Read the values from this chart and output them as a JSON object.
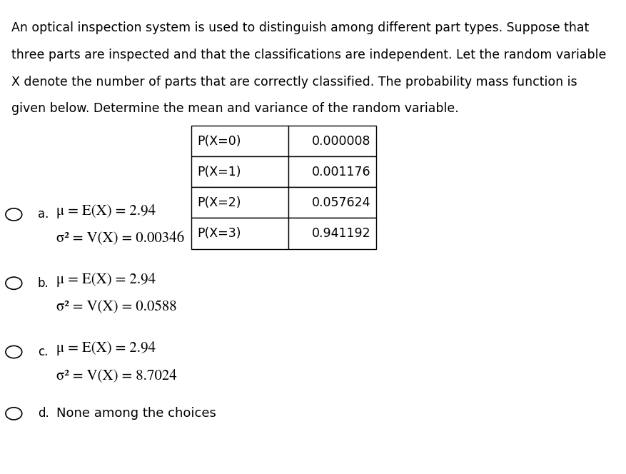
{
  "background_color": "#ffffff",
  "question_lines": [
    "An optical inspection system is used to distinguish among different part types. Suppose that",
    "three parts are inspected and that the classifications are independent. Let the random variable",
    "X denote the number of parts that are correctly classified. The probability mass function is",
    "given below. Determine the mean and variance of the random variable."
  ],
  "table_col1": [
    "P(X=0)",
    "P(X=1)",
    "P(X=2)",
    "P(X=3)"
  ],
  "table_col2": [
    "0.000008",
    "0.001176",
    "0.057624",
    "0.941192"
  ],
  "choices": [
    {
      "label": "a.",
      "line1": "μ = E(X) = 2.94",
      "line2": "σ² = V(X) = 0.00346",
      "math": true
    },
    {
      "label": "b.",
      "line1": "μ = E(X) = 2.94",
      "line2": "σ² = V(X) = 0.0588",
      "math": true
    },
    {
      "label": "c.",
      "line1": "μ = E(X) = 2.94",
      "line2": "σ² = V(X) = 8.7024",
      "math": true
    },
    {
      "label": "d.",
      "line1": "None among the choices",
      "line2": null,
      "math": false
    }
  ],
  "q_font_size": 12.5,
  "table_font_size": 12.5,
  "choice_label_font_size": 12,
  "choice_math_font_size": 15,
  "choice_d_font_size": 13,
  "text_color": "#000000"
}
